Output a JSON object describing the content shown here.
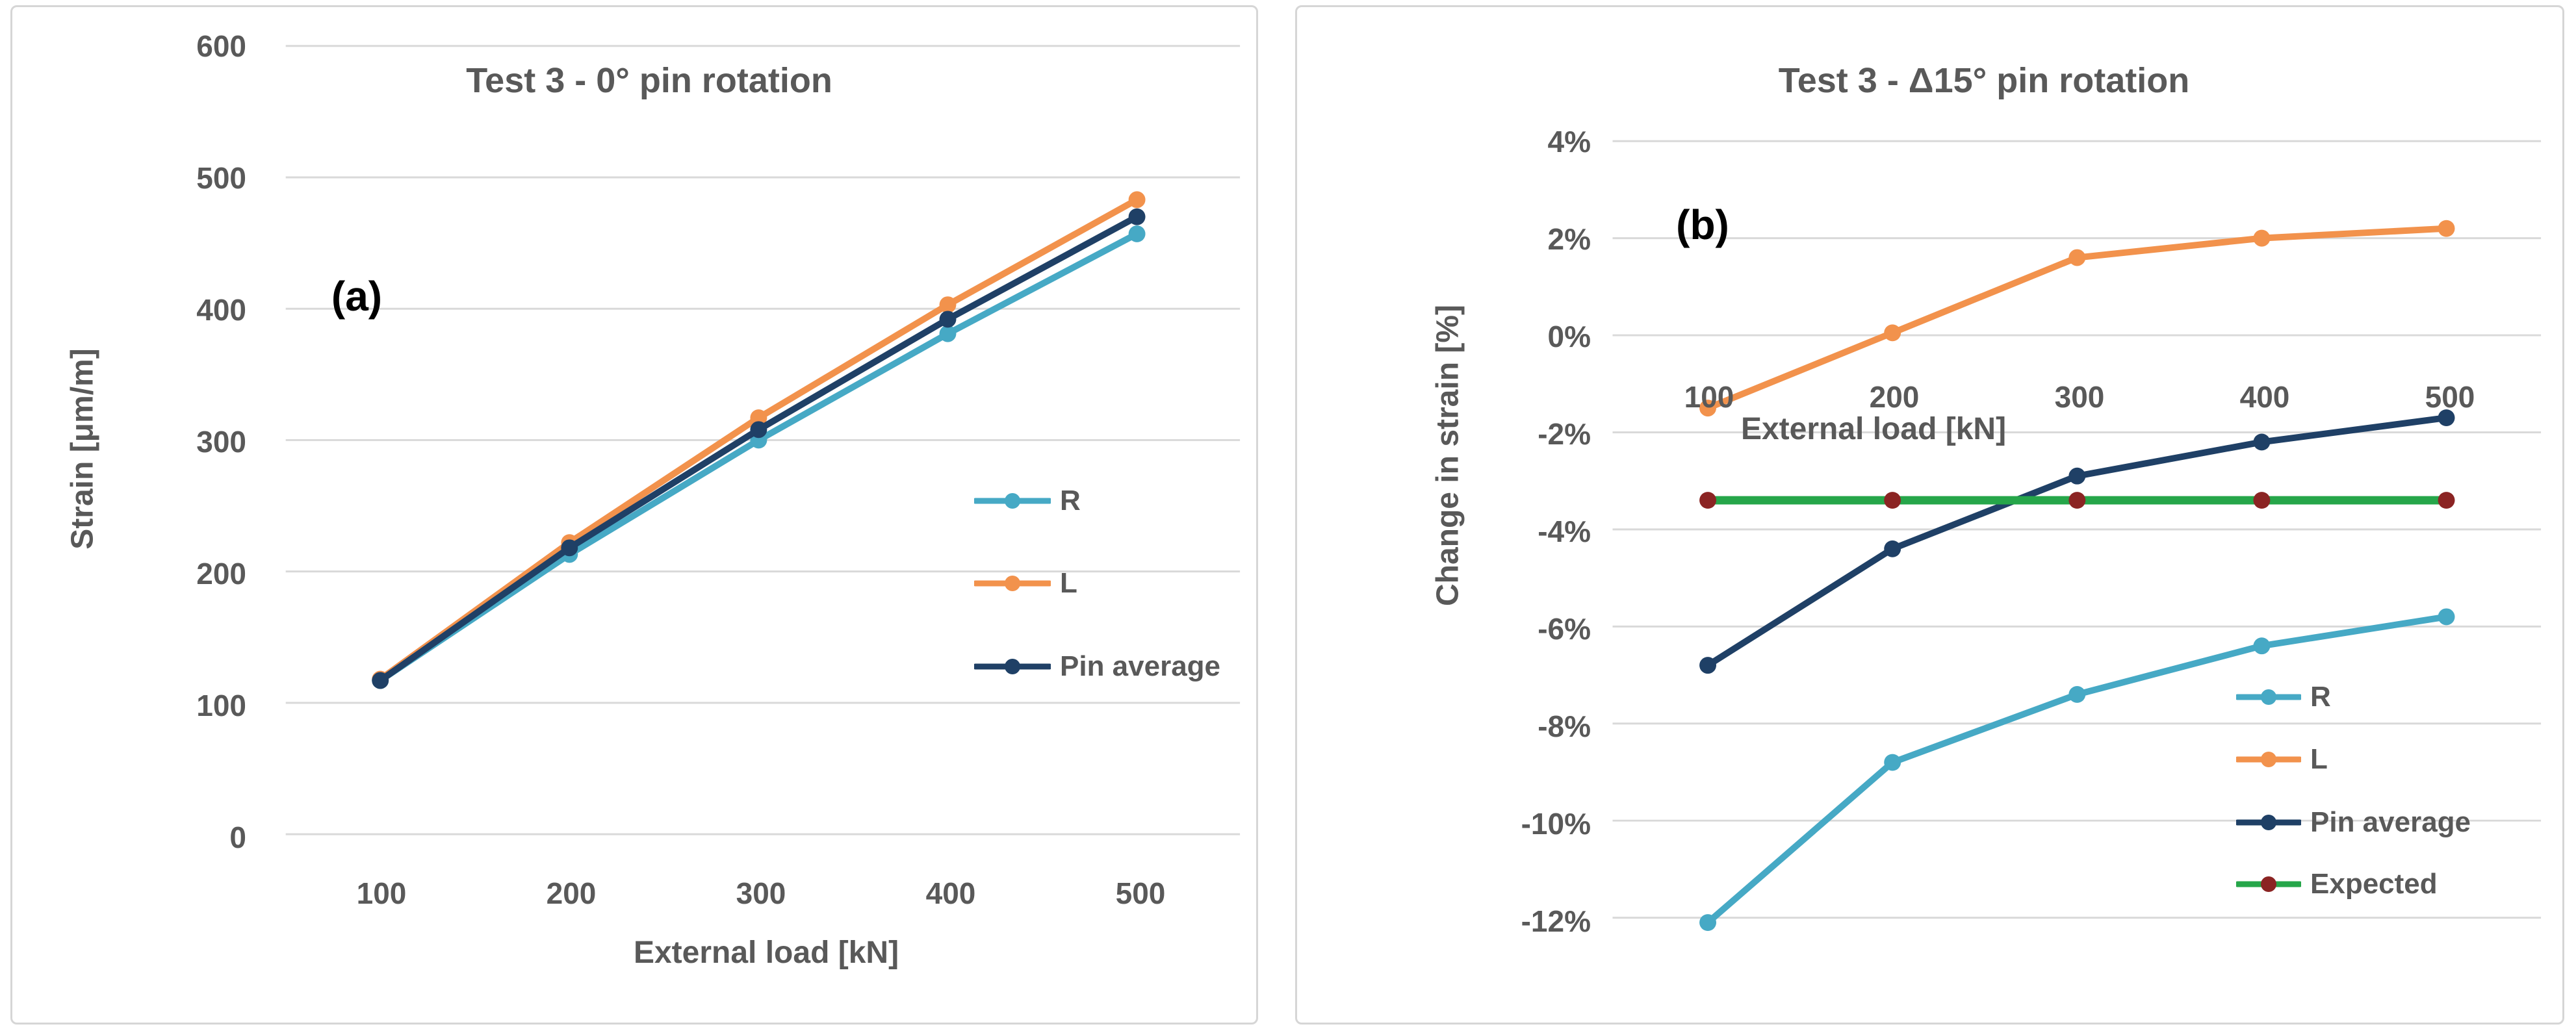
{
  "colors": {
    "background": "#FFFFFF",
    "panel_border": "#D6D6D6",
    "gridline": "#D9D9D9",
    "text": "#595959",
    "annotation_text": "#000000",
    "series_r": "#46A9C5",
    "series_l": "#F2924C",
    "series_pin": "#1F4066",
    "series_expected_line": "#26A64A",
    "series_expected_marker": "#8B2423"
  },
  "chart_data": [
    {
      "id": "a",
      "type": "line",
      "panel_label": "(a)",
      "title": "Test 3 - 0° pin rotation",
      "xlabel": "External load [kN]",
      "ylabel": "Strain [μm/m]",
      "x": [
        100,
        200,
        300,
        400,
        500
      ],
      "x_tick_labels": [
        "100",
        "200",
        "300",
        "400",
        "500"
      ],
      "y_ticks": [
        600,
        500,
        400,
        300,
        200,
        100,
        0
      ],
      "y_tick_labels": [
        "600",
        "500",
        "400",
        "300",
        "200",
        "100",
        "0"
      ],
      "ylim": [
        0,
        600
      ],
      "grid": true,
      "legend_position": "inside-middle-right",
      "series": [
        {
          "name": "R",
          "color": "#46A9C5",
          "marker": "circle",
          "values": [
            117,
            213,
            300,
            381,
            457
          ]
        },
        {
          "name": "L",
          "color": "#F2924C",
          "marker": "circle",
          "values": [
            118,
            222,
            317,
            403,
            483
          ]
        },
        {
          "name": "Pin average",
          "color": "#1F4066",
          "marker": "circle",
          "values": [
            117,
            218,
            308,
            392,
            470
          ]
        }
      ]
    },
    {
      "id": "b",
      "type": "line",
      "panel_label": "(b)",
      "title": "Test 3 - Δ15° pin rotation",
      "xlabel": "External load [kN]",
      "ylabel": "Change in strain [%]",
      "x": [
        100,
        200,
        300,
        400,
        500
      ],
      "x_tick_labels": [
        "100",
        "200",
        "300",
        "400",
        "500"
      ],
      "y_ticks": [
        4,
        2,
        0,
        -2,
        -4,
        -6,
        -8,
        -10,
        -12
      ],
      "y_tick_labels": [
        "4%",
        "2%",
        "0%",
        "-2%",
        "-4%",
        "-6%",
        "-8%",
        "-10%",
        "-12%"
      ],
      "ylim": [
        -12,
        4
      ],
      "grid": true,
      "legend_position": "inside-bottom-right",
      "series": [
        {
          "name": "R",
          "color": "#46A9C5",
          "marker": "circle",
          "values": [
            -12.1,
            -8.8,
            -7.4,
            -6.4,
            -5.8
          ]
        },
        {
          "name": "L",
          "color": "#F2924C",
          "marker": "circle",
          "values": [
            -1.5,
            0.05,
            1.6,
            2.0,
            2.2
          ]
        },
        {
          "name": "Pin average",
          "color": "#1F4066",
          "marker": "circle",
          "values": [
            -6.8,
            -4.4,
            -2.9,
            -2.2,
            -1.7
          ]
        },
        {
          "name": "Expected",
          "color": "#26A64A",
          "marker": "circle",
          "marker_color": "#8B2423",
          "line_width": 13,
          "values": [
            -3.4,
            -3.4,
            -3.4,
            -3.4,
            -3.4
          ]
        }
      ]
    }
  ]
}
